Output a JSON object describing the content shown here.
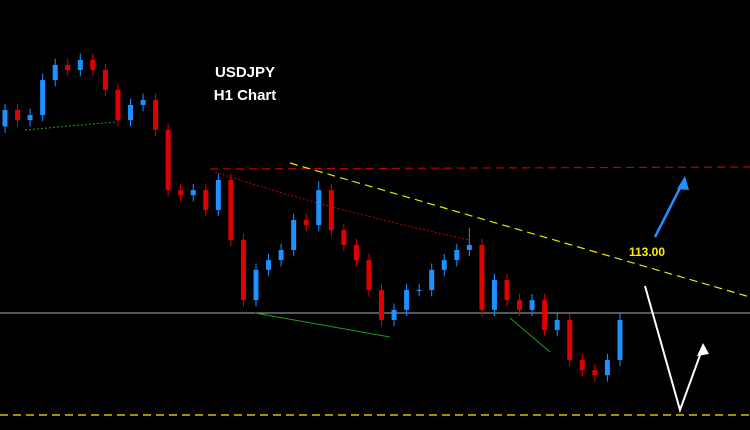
{
  "chart_data": {
    "type": "candlestick",
    "title": "USDJPY",
    "subtitle": "H1 Chart",
    "annotation": "113.00",
    "up_color": "#1e90ff",
    "down_color": "#e00000",
    "ylim": [
      112.58,
      113.6
    ],
    "open": [
      113.3,
      113.339,
      113.315,
      113.327,
      113.41,
      113.446,
      113.434,
      113.458,
      113.434,
      113.387,
      113.315,
      113.351,
      113.363,
      113.292,
      113.149,
      113.137,
      113.149,
      113.102,
      113.173,
      113.031,
      112.888,
      112.96,
      112.983,
      113.007,
      113.078,
      113.066,
      113.149,
      113.054,
      113.019,
      112.983,
      112.912,
      112.841,
      112.865,
      112.912,
      112.912,
      112.96,
      112.983,
      113.007,
      113.019,
      112.865,
      112.936,
      112.888,
      112.865,
      112.888,
      112.817,
      112.841,
      112.746,
      112.722,
      112.71,
      112.746
    ],
    "high": [
      113.354,
      113.354,
      113.342,
      113.425,
      113.461,
      113.461,
      113.473,
      113.473,
      113.449,
      113.402,
      113.366,
      113.378,
      113.378,
      113.307,
      113.164,
      113.164,
      113.164,
      113.188,
      113.188,
      113.046,
      112.975,
      112.998,
      113.022,
      113.093,
      113.093,
      113.17,
      113.164,
      113.069,
      113.034,
      112.998,
      112.927,
      112.88,
      112.927,
      112.927,
      112.975,
      112.998,
      113.022,
      113.06,
      113.034,
      112.951,
      112.951,
      112.903,
      112.903,
      112.903,
      112.856,
      112.856,
      112.761,
      112.737,
      112.761,
      112.856
    ],
    "low": [
      113.285,
      113.3,
      113.3,
      113.312,
      113.395,
      113.419,
      113.419,
      113.419,
      113.372,
      113.3,
      113.3,
      113.336,
      113.277,
      113.134,
      113.122,
      113.122,
      113.087,
      113.087,
      113.016,
      112.873,
      112.873,
      112.945,
      112.968,
      112.992,
      113.051,
      113.051,
      113.039,
      113.004,
      112.968,
      112.897,
      112.826,
      112.826,
      112.85,
      112.897,
      112.897,
      112.945,
      112.968,
      112.992,
      112.85,
      112.85,
      112.873,
      112.85,
      112.85,
      112.802,
      112.802,
      112.731,
      112.707,
      112.695,
      112.695,
      112.731
    ],
    "close": [
      113.339,
      113.315,
      113.327,
      113.41,
      113.446,
      113.434,
      113.458,
      113.434,
      113.387,
      113.315,
      113.351,
      113.363,
      113.292,
      113.149,
      113.137,
      113.149,
      113.102,
      113.173,
      113.031,
      112.888,
      112.96,
      112.983,
      113.007,
      113.078,
      113.066,
      113.149,
      113.054,
      113.019,
      112.983,
      112.912,
      112.841,
      112.865,
      112.912,
      112.912,
      112.96,
      112.983,
      113.007,
      113.019,
      112.865,
      112.936,
      112.888,
      112.865,
      112.888,
      112.817,
      112.841,
      112.746,
      112.722,
      112.71,
      112.746,
      112.841
    ]
  }
}
